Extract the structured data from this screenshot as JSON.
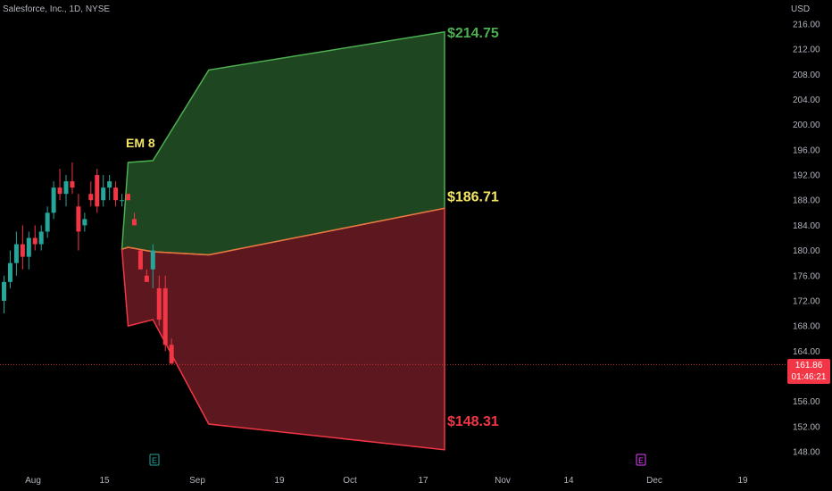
{
  "header": {
    "title": "Salesforce, Inc., 1D, NYSE",
    "currency": "USD"
  },
  "price_tag": {
    "price": "161.86",
    "countdown": "01:46:21"
  },
  "colors": {
    "up": "#26a69a",
    "down": "#f23645",
    "bull_fill": "#1e4620",
    "bull_line": "#4caf50",
    "bear_fill": "#5c171f",
    "bear_line": "#f23645",
    "em_label": "#f5e663"
  },
  "chart_data": {
    "type": "candlestick",
    "y_axis": {
      "min": 148,
      "max": 216,
      "ticks": [
        "216.00",
        "212.00",
        "208.00",
        "204.00",
        "200.00",
        "196.00",
        "192.00",
        "188.00",
        "184.00",
        "180.00",
        "176.00",
        "172.00",
        "168.00",
        "164.00",
        "156.00",
        "152.00",
        "148.00"
      ]
    },
    "x_axis": {
      "ticks": [
        "Aug",
        "15",
        "Sep",
        "19",
        "Oct",
        "17",
        "Nov",
        "14",
        "Dec",
        "19"
      ]
    },
    "current_price": 161.86,
    "candles": [
      {
        "o": 172,
        "h": 176,
        "l": 170,
        "c": 175
      },
      {
        "o": 175,
        "h": 180,
        "l": 174,
        "c": 178
      },
      {
        "o": 178,
        "h": 183,
        "l": 176,
        "c": 181
      },
      {
        "o": 181,
        "h": 184,
        "l": 177,
        "c": 179
      },
      {
        "o": 179,
        "h": 183,
        "l": 177,
        "c": 182
      },
      {
        "o": 182,
        "h": 184,
        "l": 180,
        "c": 181
      },
      {
        "o": 181,
        "h": 184,
        "l": 180,
        "c": 183
      },
      {
        "o": 183,
        "h": 187,
        "l": 182,
        "c": 186
      },
      {
        "o": 186,
        "h": 191,
        "l": 185,
        "c": 190
      },
      {
        "o": 190,
        "h": 193,
        "l": 188,
        "c": 189
      },
      {
        "o": 189,
        "h": 192,
        "l": 187,
        "c": 191
      },
      {
        "o": 191,
        "h": 194,
        "l": 189,
        "c": 190
      },
      {
        "o": 187,
        "h": 189,
        "l": 180,
        "c": 183
      },
      {
        "o": 184,
        "h": 186,
        "l": 183,
        "c": 185
      },
      {
        "o": 189,
        "h": 191,
        "l": 187,
        "c": 188
      },
      {
        "o": 192,
        "h": 193,
        "l": 186,
        "c": 187
      },
      {
        "o": 188,
        "h": 192,
        "l": 187,
        "c": 190
      },
      {
        "o": 190,
        "h": 192,
        "l": 188,
        "c": 191
      },
      {
        "o": 190,
        "h": 191,
        "l": 187,
        "c": 188
      },
      {
        "o": 188,
        "h": 189,
        "l": 187,
        "c": 188
      },
      {
        "o": 189,
        "h": 189,
        "l": 188,
        "c": 188
      },
      {
        "o": 185,
        "h": 186,
        "l": 184,
        "c": 184
      },
      {
        "o": 180,
        "h": 180,
        "l": 177,
        "c": 177
      },
      {
        "o": 176,
        "h": 177,
        "l": 175,
        "c": 175
      },
      {
        "o": 177,
        "h": 181,
        "l": 174,
        "c": 180
      },
      {
        "o": 174,
        "h": 176,
        "l": 168,
        "c": 169
      },
      {
        "o": 174,
        "h": 176,
        "l": 164,
        "c": 165
      },
      {
        "o": 165,
        "h": 166,
        "l": 162,
        "c": 162
      }
    ],
    "expected_move": {
      "label": "EM 8",
      "upper": [
        [
          20,
          194.0
        ],
        [
          24,
          194.3
        ],
        [
          33,
          208.7
        ],
        [
          71,
          214.75
        ]
      ],
      "middle": [
        [
          20,
          180.5
        ],
        [
          24,
          179.8
        ],
        [
          33,
          179.3
        ],
        [
          71,
          186.71
        ]
      ],
      "lower": [
        [
          20,
          168.0
        ],
        [
          24,
          169.0
        ],
        [
          33,
          152.4
        ],
        [
          71,
          148.31
        ]
      ],
      "start": [
        19,
        180.2
      ],
      "labels": {
        "upper": "$214.75",
        "middle": "$186.71",
        "lower": "$148.31"
      }
    },
    "event_markers": [
      "E",
      "E"
    ]
  }
}
